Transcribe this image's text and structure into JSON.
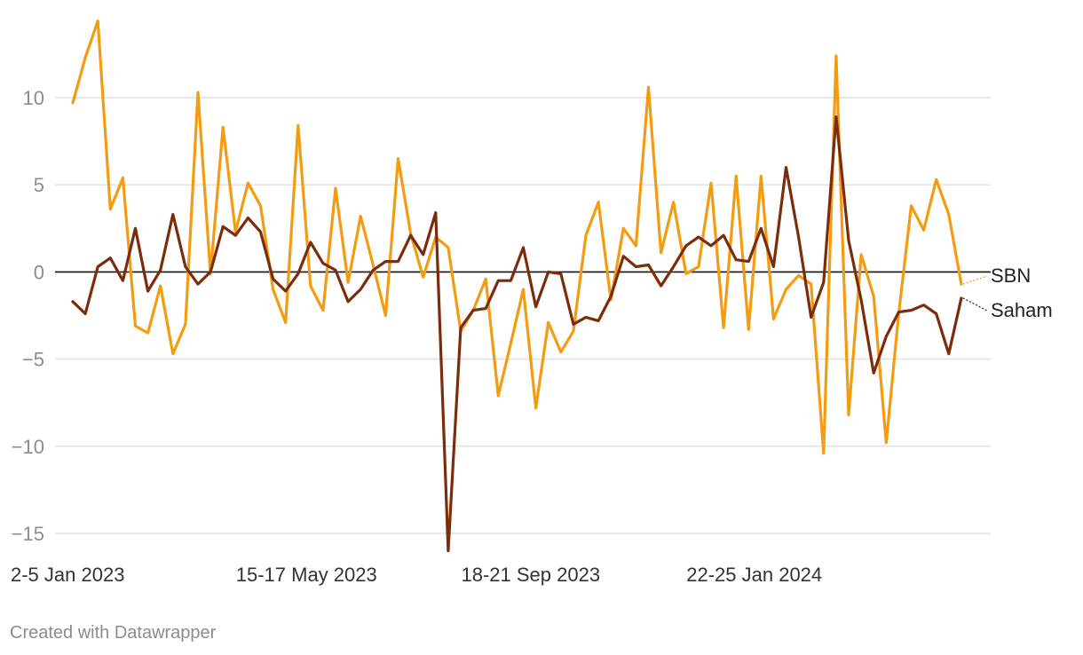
{
  "chart_data": {
    "type": "line",
    "title": "",
    "xlabel": "",
    "ylabel": "",
    "ylim": [
      -16,
      14.5
    ],
    "y_ticks": [
      10,
      5,
      0,
      -5,
      -10,
      -15
    ],
    "y_tick_labels": [
      "10",
      "5",
      "0",
      "−5",
      "−10",
      "−15"
    ],
    "x_index_range": [
      0,
      72
    ],
    "x_ticks": [
      {
        "index": 0,
        "label": "2-5 Jan 2023"
      },
      {
        "index": 18,
        "label": "15-17 May 2023"
      },
      {
        "index": 36,
        "label": "18-21 Sep 2023"
      },
      {
        "index": 54,
        "label": "22-25 Jan 2024"
      }
    ],
    "grid": true,
    "legend": "direct labels at right end of lines",
    "series": [
      {
        "name": "SBN",
        "color": "#f39c12",
        "values": [
          9.7,
          12.3,
          14.4,
          3.6,
          5.4,
          -3.1,
          -3.5,
          -0.8,
          -4.7,
          -3.0,
          10.3,
          -0.1,
          8.3,
          2.3,
          5.1,
          3.8,
          -1.0,
          -2.9,
          8.4,
          -0.8,
          -2.2,
          4.8,
          -0.6,
          3.2,
          0.4,
          -2.5,
          6.5,
          2.2,
          -0.3,
          2.0,
          1.4,
          -3.4,
          -2.2,
          -0.4,
          -7.1,
          -4.1,
          -1.0,
          -7.8,
          -2.9,
          -4.6,
          -3.4,
          2.1,
          4.0,
          -1.6,
          2.5,
          1.5,
          10.6,
          1.1,
          4.0,
          -0.1,
          0.3,
          5.1,
          -3.2,
          5.5,
          -3.3,
          5.5,
          -2.7,
          -1.0,
          -0.2,
          -0.7,
          -10.4,
          12.4,
          -8.2,
          1.0,
          -1.4,
          -9.8,
          -2.4,
          3.8,
          2.4,
          5.3,
          3.3,
          -0.7
        ]
      },
      {
        "name": "Saham",
        "color": "#7b2c0a",
        "values": [
          -1.7,
          -2.4,
          0.3,
          0.8,
          -0.5,
          2.5,
          -1.1,
          0.1,
          3.3,
          0.3,
          -0.7,
          0.0,
          2.6,
          2.1,
          3.1,
          2.3,
          -0.4,
          -1.1,
          -0.1,
          1.7,
          0.5,
          0.1,
          -1.7,
          -1.0,
          0.1,
          0.6,
          0.6,
          2.1,
          1.0,
          3.4,
          -16.0,
          -3.2,
          -2.2,
          -2.1,
          -0.5,
          -0.5,
          1.4,
          -2.0,
          0.0,
          -0.1,
          -3.0,
          -2.6,
          -2.8,
          -1.4,
          0.9,
          0.3,
          0.4,
          -0.8,
          0.3,
          1.5,
          2.0,
          1.5,
          2.1,
          0.7,
          0.6,
          2.5,
          0.3,
          6.0,
          2.0,
          -2.6,
          -0.6,
          8.9,
          1.8,
          -1.6,
          -5.8,
          -3.7,
          -2.3,
          -2.2,
          -1.9,
          -2.4,
          -4.7,
          -1.5
        ]
      }
    ]
  },
  "footer": {
    "credit": "Created with Datawrapper"
  }
}
